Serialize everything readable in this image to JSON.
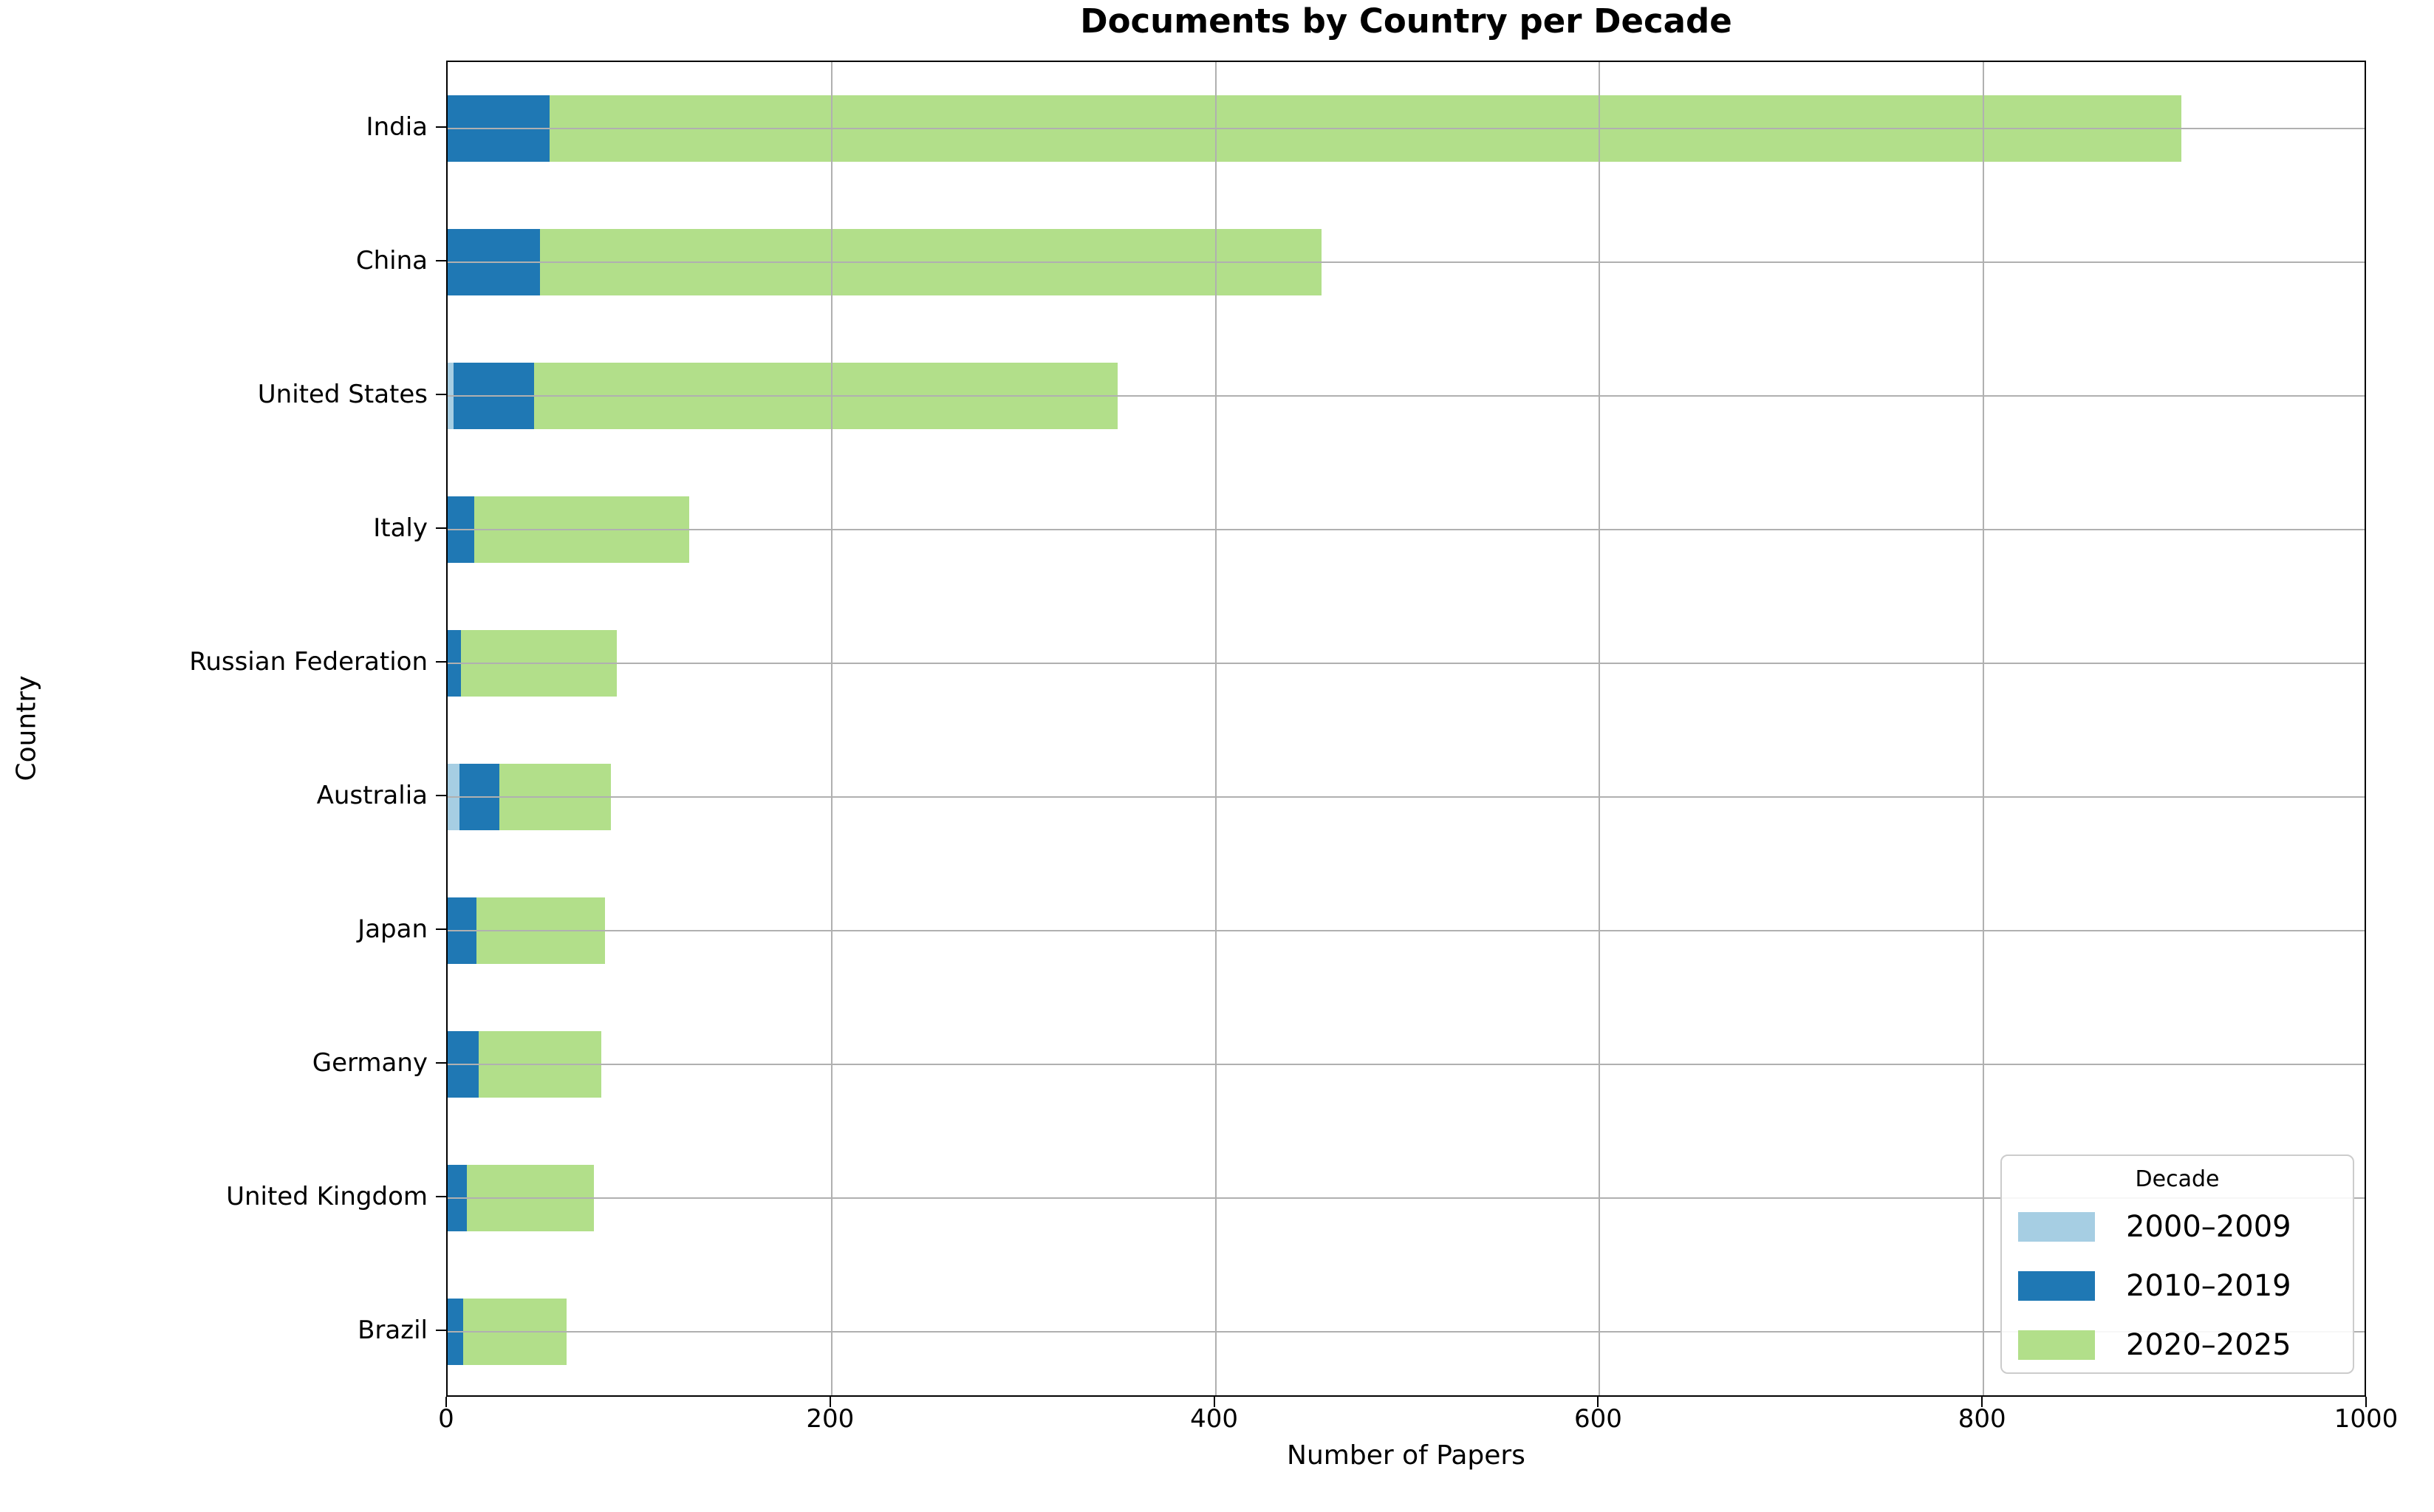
{
  "chart": {
    "title": "Documents by Country per Decade",
    "xlabel": "Number of Papers",
    "ylabel": "Country",
    "legend_title": "Decade"
  },
  "chart_data": {
    "type": "bar",
    "orientation": "horizontal",
    "stacked": true,
    "title": "Documents by Country per Decade",
    "xlabel": "Number of Papers",
    "ylabel": "Country",
    "xlim": [
      0,
      1000
    ],
    "xticks": [
      0,
      200,
      400,
      600,
      800,
      1000
    ],
    "grid": true,
    "legend": {
      "title": "Decade",
      "position": "lower right"
    },
    "categories": [
      "India",
      "China",
      "United States",
      "Italy",
      "Russian Federation",
      "Australia",
      "Japan",
      "Germany",
      "United Kingdom",
      "Brazil"
    ],
    "series": [
      {
        "name": "2000–2009",
        "color": "#a6cee3",
        "values": [
          0,
          0,
          3,
          0,
          0,
          6,
          0,
          0,
          0,
          0
        ]
      },
      {
        "name": "2010–2019",
        "color": "#1f78b4",
        "values": [
          53,
          48,
          42,
          14,
          7,
          21,
          15,
          16,
          10,
          8
        ]
      },
      {
        "name": "2020–2025",
        "color": "#b2df8a",
        "values": [
          850,
          407,
          304,
          112,
          81,
          58,
          67,
          64,
          66,
          54
        ]
      }
    ],
    "totals": [
      903,
      455,
      349,
      126,
      88,
      85,
      82,
      80,
      76,
      62
    ]
  }
}
